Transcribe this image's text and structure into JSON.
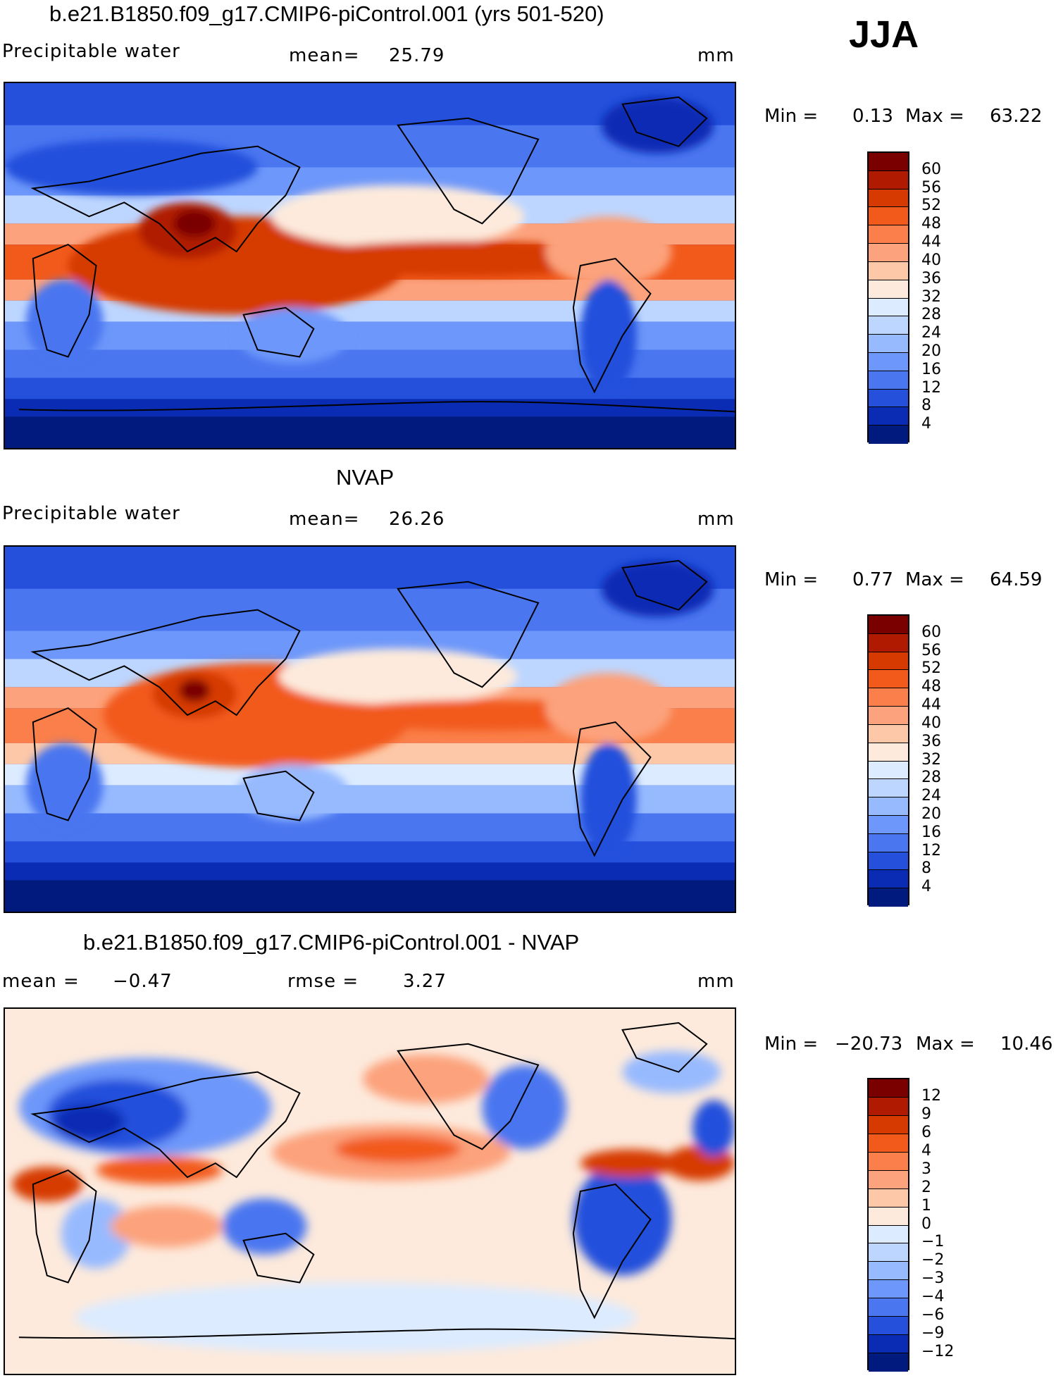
{
  "season": "JJA",
  "chart_data": [
    {
      "type": "heatmap",
      "title": "b.e21.B1850.f09_g17.CMIP6-piControl.001 (yrs 501-520)",
      "left_label": "Precipitable water",
      "stat_label": "mean=",
      "stat_value": "25.79",
      "units": "mm",
      "min_label": "Min =",
      "min_value": "0.13",
      "max_label": "Max =",
      "max_value": "63.22",
      "colorbar": {
        "ticks": [
          "60",
          "56",
          "52",
          "48",
          "44",
          "40",
          "36",
          "32",
          "28",
          "24",
          "20",
          "16",
          "12",
          "8",
          "4"
        ],
        "colors": [
          "#7a0000",
          "#b01a00",
          "#d63a00",
          "#f25a1c",
          "#fa7f4a",
          "#fca27c",
          "#fdc8a8",
          "#fdeadc",
          "#dcebff",
          "#bdd6ff",
          "#97baff",
          "#6d97fa",
          "#4a76f0",
          "#2450dc",
          "#0a2cb4",
          "#001a7d"
        ]
      }
    },
    {
      "type": "heatmap",
      "title": "NVAP",
      "left_label": "Precipitable water",
      "stat_label": "mean=",
      "stat_value": "26.26",
      "units": "mm",
      "min_label": "Min =",
      "min_value": "0.77",
      "max_label": "Max =",
      "max_value": "64.59",
      "colorbar": {
        "ticks": [
          "60",
          "56",
          "52",
          "48",
          "44",
          "40",
          "36",
          "32",
          "28",
          "24",
          "20",
          "16",
          "12",
          "8",
          "4"
        ],
        "colors": [
          "#7a0000",
          "#b01a00",
          "#d63a00",
          "#f25a1c",
          "#fa7f4a",
          "#fca27c",
          "#fdc8a8",
          "#fdeadc",
          "#dcebff",
          "#bdd6ff",
          "#97baff",
          "#6d97fa",
          "#4a76f0",
          "#2450dc",
          "#0a2cb4",
          "#001a7d"
        ]
      }
    },
    {
      "type": "heatmap",
      "title": "b.e21.B1850.f09_g17.CMIP6-piControl.001 - NVAP",
      "left_label": "mean =",
      "left_value": "−0.47",
      "stat_label": "rmse =",
      "stat_value": "3.27",
      "units": "mm",
      "min_label": "Min =",
      "min_value": "−20.73",
      "max_label": "Max =",
      "max_value": "10.46",
      "colorbar": {
        "ticks": [
          "12",
          "9",
          "6",
          "4",
          "3",
          "2",
          "1",
          "0",
          "−1",
          "−2",
          "−3",
          "−4",
          "−6",
          "−9",
          "−12"
        ],
        "colors": [
          "#7a0000",
          "#b01a00",
          "#d63a00",
          "#f25a1c",
          "#fa7f4a",
          "#fca27c",
          "#fdc8a8",
          "#fdeadc",
          "#dcebff",
          "#bdd6ff",
          "#97baff",
          "#6d97fa",
          "#4a76f0",
          "#2450dc",
          "#0a2cb4",
          "#001a7d"
        ]
      }
    }
  ]
}
